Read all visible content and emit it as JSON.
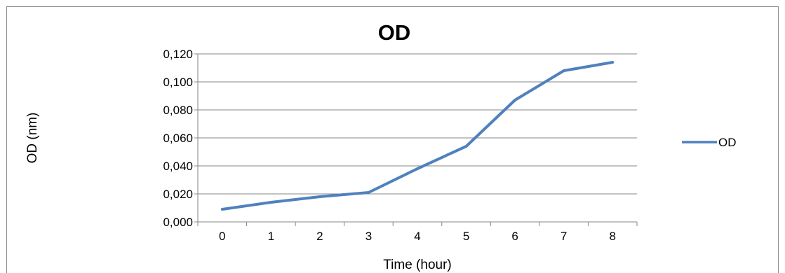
{
  "chart_data": {
    "type": "line",
    "title": "OD",
    "xlabel": "Time (hour)",
    "ylabel": "OD (nm)",
    "categories": [
      "0",
      "1",
      "2",
      "3",
      "4",
      "5",
      "6",
      "7",
      "8"
    ],
    "y_tick_labels": [
      "0,000",
      "0,020",
      "0,040",
      "0,060",
      "0,080",
      "0,100",
      "0,120"
    ],
    "ylim": [
      0,
      0.12
    ],
    "grid": "horizontal",
    "legend_position": "right",
    "series": [
      {
        "name": "OD",
        "color": "#4f81bd",
        "values": [
          0.009,
          0.014,
          0.018,
          0.021,
          0.038,
          0.054,
          0.087,
          0.108,
          0.114
        ]
      }
    ]
  }
}
